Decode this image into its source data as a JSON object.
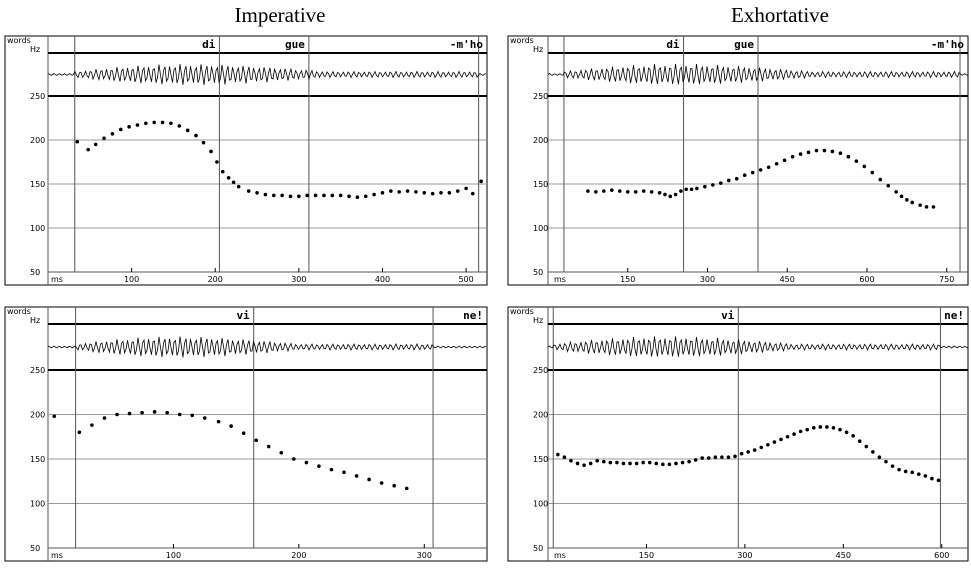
{
  "column_titles": {
    "left": "Imperative",
    "right": "Exhortative"
  },
  "chart_data": [
    {
      "type": "scatter",
      "title": "Imperative",
      "word_axis_label": "words",
      "ylabel": "Hz",
      "xlabel": "ms",
      "ylim": [
        50,
        250
      ],
      "yticks": [
        50,
        100,
        150,
        200,
        250
      ],
      "xlim": [
        0,
        525
      ],
      "xticks": [
        100,
        200,
        300,
        400,
        500
      ],
      "grid": true,
      "words": [
        {
          "text": "di",
          "start": 0
        },
        {
          "text": "gue",
          "start": 205
        },
        {
          "text": "-m'ho",
          "start": 312
        }
      ],
      "boundaries": [
        32,
        205,
        312,
        515
      ],
      "points": [
        [
          35,
          198
        ],
        [
          48,
          189
        ],
        [
          57,
          195
        ],
        [
          67,
          202
        ],
        [
          77,
          207
        ],
        [
          87,
          212
        ],
        [
          97,
          215
        ],
        [
          107,
          217
        ],
        [
          117,
          219
        ],
        [
          127,
          220
        ],
        [
          137,
          220
        ],
        [
          147,
          219
        ],
        [
          157,
          216
        ],
        [
          167,
          211
        ],
        [
          177,
          205
        ],
        [
          186,
          197
        ],
        [
          195,
          187
        ],
        [
          202,
          175
        ],
        [
          209,
          164
        ],
        [
          216,
          157
        ],
        [
          222,
          152
        ],
        [
          228,
          147
        ],
        [
          240,
          142
        ],
        [
          250,
          140
        ],
        [
          260,
          138
        ],
        [
          270,
          137
        ],
        [
          280,
          137
        ],
        [
          290,
          136
        ],
        [
          300,
          136
        ],
        [
          310,
          137
        ],
        [
          320,
          137
        ],
        [
          330,
          137
        ],
        [
          340,
          137
        ],
        [
          350,
          137
        ],
        [
          360,
          136
        ],
        [
          370,
          135
        ],
        [
          380,
          136
        ],
        [
          390,
          138
        ],
        [
          400,
          140
        ],
        [
          410,
          142
        ],
        [
          420,
          141
        ],
        [
          430,
          142
        ],
        [
          440,
          141
        ],
        [
          450,
          140
        ],
        [
          460,
          139
        ],
        [
          470,
          140
        ],
        [
          480,
          140
        ],
        [
          490,
          142
        ],
        [
          500,
          145
        ],
        [
          508,
          139
        ],
        [
          518,
          153
        ]
      ]
    },
    {
      "type": "scatter",
      "title": "Exhortative",
      "word_axis_label": "words",
      "ylabel": "Hz",
      "xlabel": "ms",
      "ylim": [
        50,
        250
      ],
      "yticks": [
        50,
        100,
        150,
        200,
        250
      ],
      "xlim": [
        0,
        790
      ],
      "xticks": [
        150,
        300,
        450,
        600,
        750
      ],
      "grid": true,
      "words": [
        {
          "text": "di",
          "start": 0
        },
        {
          "text": "gue",
          "start": 255
        },
        {
          "text": "-m'ho",
          "start": 395
        }
      ],
      "boundaries": [
        30,
        255,
        395,
        775
      ],
      "points": [
        [
          75,
          142
        ],
        [
          90,
          141
        ],
        [
          105,
          142
        ],
        [
          120,
          143
        ],
        [
          135,
          142
        ],
        [
          150,
          141
        ],
        [
          165,
          141
        ],
        [
          180,
          142
        ],
        [
          195,
          141
        ],
        [
          210,
          140
        ],
        [
          220,
          138
        ],
        [
          230,
          136
        ],
        [
          240,
          138
        ],
        [
          250,
          142
        ],
        [
          260,
          144
        ],
        [
          270,
          144
        ],
        [
          280,
          145
        ],
        [
          295,
          147
        ],
        [
          310,
          149
        ],
        [
          325,
          151
        ],
        [
          340,
          154
        ],
        [
          355,
          156
        ],
        [
          370,
          160
        ],
        [
          385,
          163
        ],
        [
          400,
          166
        ],
        [
          415,
          169
        ],
        [
          430,
          173
        ],
        [
          445,
          177
        ],
        [
          460,
          181
        ],
        [
          475,
          184
        ],
        [
          490,
          186
        ],
        [
          505,
          188
        ],
        [
          520,
          188
        ],
        [
          535,
          187
        ],
        [
          550,
          185
        ],
        [
          565,
          181
        ],
        [
          580,
          176
        ],
        [
          595,
          170
        ],
        [
          610,
          163
        ],
        [
          625,
          155
        ],
        [
          640,
          148
        ],
        [
          655,
          141
        ],
        [
          665,
          136
        ],
        [
          675,
          132
        ],
        [
          685,
          129
        ],
        [
          700,
          126
        ],
        [
          712,
          124
        ],
        [
          725,
          124
        ]
      ]
    },
    {
      "type": "scatter",
      "title": "Imperative",
      "word_axis_label": "words",
      "ylabel": "Hz",
      "xlabel": "ms",
      "ylim": [
        50,
        250
      ],
      "yticks": [
        50,
        100,
        150,
        200,
        250
      ],
      "xlim": [
        0,
        350
      ],
      "xticks": [
        100,
        200,
        300
      ],
      "grid": true,
      "words": [
        {
          "text": "vi",
          "start": 0
        },
        {
          "text": "ne!",
          "start": 164
        }
      ],
      "boundaries": [
        22,
        164,
        307
      ],
      "points": [
        [
          5,
          198
        ],
        [
          25,
          180
        ],
        [
          35,
          188
        ],
        [
          45,
          196
        ],
        [
          55,
          200
        ],
        [
          65,
          201
        ],
        [
          75,
          202
        ],
        [
          85,
          203
        ],
        [
          95,
          202
        ],
        [
          105,
          200
        ],
        [
          115,
          199
        ],
        [
          125,
          196
        ],
        [
          136,
          192
        ],
        [
          146,
          187
        ],
        [
          156,
          179
        ],
        [
          166,
          171
        ],
        [
          176,
          164
        ],
        [
          186,
          157
        ],
        [
          196,
          150
        ],
        [
          206,
          146
        ],
        [
          216,
          142
        ],
        [
          226,
          138
        ],
        [
          236,
          135
        ],
        [
          246,
          131
        ],
        [
          256,
          127
        ],
        [
          266,
          123
        ],
        [
          276,
          120
        ],
        [
          286,
          117
        ]
      ]
    },
    {
      "type": "scatter",
      "title": "Exhortative",
      "word_axis_label": "words",
      "ylabel": "Hz",
      "xlabel": "ms",
      "ylim": [
        50,
        250
      ],
      "yticks": [
        50,
        100,
        150,
        200,
        250
      ],
      "xlim": [
        0,
        640
      ],
      "xticks": [
        150,
        300,
        450,
        600
      ],
      "grid": true,
      "words": [
        {
          "text": "vi",
          "start": 0
        },
        {
          "text": "ne!",
          "start": 290
        }
      ],
      "boundaries": [
        8,
        290,
        598
      ],
      "points": [
        [
          15,
          155
        ],
        [
          25,
          152
        ],
        [
          35,
          148
        ],
        [
          45,
          145
        ],
        [
          55,
          143
        ],
        [
          65,
          145
        ],
        [
          75,
          148
        ],
        [
          85,
          147
        ],
        [
          95,
          146
        ],
        [
          105,
          146
        ],
        [
          115,
          145
        ],
        [
          125,
          145
        ],
        [
          135,
          145
        ],
        [
          145,
          146
        ],
        [
          155,
          146
        ],
        [
          165,
          145
        ],
        [
          175,
          144
        ],
        [
          185,
          144
        ],
        [
          195,
          145
        ],
        [
          205,
          146
        ],
        [
          215,
          147
        ],
        [
          225,
          149
        ],
        [
          235,
          151
        ],
        [
          245,
          151
        ],
        [
          255,
          152
        ],
        [
          265,
          152
        ],
        [
          275,
          152
        ],
        [
          285,
          153
        ],
        [
          295,
          156
        ],
        [
          305,
          158
        ],
        [
          315,
          160
        ],
        [
          325,
          163
        ],
        [
          335,
          166
        ],
        [
          345,
          169
        ],
        [
          355,
          172
        ],
        [
          365,
          175
        ],
        [
          375,
          178
        ],
        [
          385,
          181
        ],
        [
          395,
          183
        ],
        [
          405,
          185
        ],
        [
          415,
          186
        ],
        [
          425,
          186
        ],
        [
          435,
          185
        ],
        [
          445,
          183
        ],
        [
          455,
          180
        ],
        [
          465,
          176
        ],
        [
          475,
          170
        ],
        [
          485,
          164
        ],
        [
          495,
          158
        ],
        [
          505,
          152
        ],
        [
          515,
          147
        ],
        [
          525,
          142
        ],
        [
          535,
          138
        ],
        [
          545,
          136
        ],
        [
          555,
          135
        ],
        [
          565,
          133
        ],
        [
          575,
          131
        ],
        [
          585,
          128
        ],
        [
          595,
          126
        ]
      ]
    }
  ]
}
